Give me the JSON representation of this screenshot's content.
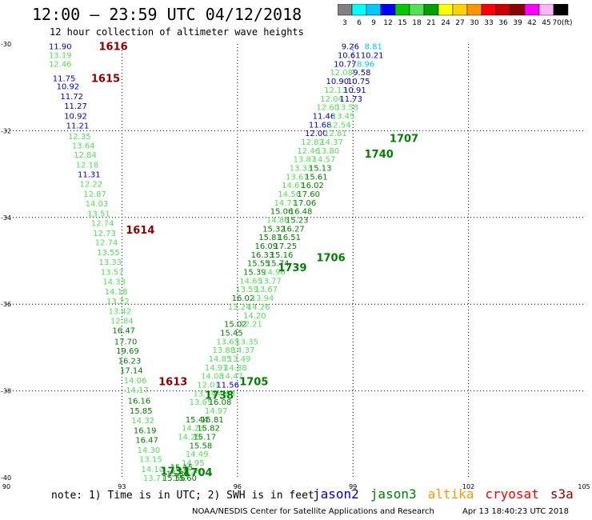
{
  "header": {
    "title": "12:00 – 23:59 UTC 04/12/2018",
    "subtitle": "12 hour collection of altimeter wave heights"
  },
  "colorbar": {
    "unit": "(ft)",
    "labels": [
      "3",
      "6",
      "9",
      "12",
      "15",
      "18",
      "21",
      "24",
      "27",
      "30",
      "33",
      "36",
      "39",
      "42",
      "45",
      "70"
    ],
    "colors": [
      "#808080",
      "#00ffff",
      "#00c8ff",
      "#0000ff",
      "#00c800",
      "#55e05a",
      "#00a000",
      "#ffff00",
      "#ffd200",
      "#ff9600",
      "#ff0000",
      "#c80000",
      "#8b0000",
      "#ff00ff",
      "#ffb4ff",
      "#000000"
    ]
  },
  "axes": {
    "x_ticks": [
      "90",
      "93",
      "96",
      "99",
      "102",
      "105"
    ],
    "y_ticks": [
      "-30",
      "-32",
      "-34",
      "-36",
      "-38",
      "-40"
    ]
  },
  "footer": {
    "note": "note: 1) Time is in UTC; 2) SWH is in feet",
    "satellites": [
      {
        "name": "jason2",
        "color": "#0000cc"
      },
      {
        "name": "jason3",
        "color": "#008000"
      },
      {
        "name": "altika",
        "color": "#ff9900"
      },
      {
        "name": "cryosat",
        "color": "#ff0000"
      },
      {
        "name": "s3a",
        "color": "#8b0000"
      }
    ],
    "credit": "NOAA/NESDIS Center for Satellite Applications and Research",
    "timestamp": "Apr 13 18:40:23 UTC 2018"
  },
  "chart_data": {
    "type": "scatter",
    "xlim": [
      90,
      105
    ],
    "ylim": [
      -40,
      -30
    ],
    "track_labels": [
      {
        "text": "1616",
        "lon": 92.4,
        "lat": -30.05,
        "color": "#8b0000"
      },
      {
        "text": "1615",
        "lon": 92.2,
        "lat": -30.78,
        "color": "#8b0000"
      },
      {
        "text": "1614",
        "lon": 93.1,
        "lat": -34.28,
        "color": "#8b0000"
      },
      {
        "text": "1613",
        "lon": 93.95,
        "lat": -37.78,
        "color": "#8b0000"
      },
      {
        "text": "1707",
        "lon": 99.95,
        "lat": -32.17,
        "color": "#008000"
      },
      {
        "text": "1740",
        "lon": 99.3,
        "lat": -32.53,
        "color": "#008000"
      },
      {
        "text": "1706",
        "lon": 98.05,
        "lat": -34.92,
        "color": "#008000"
      },
      {
        "text": "1739",
        "lon": 97.05,
        "lat": -35.15,
        "color": "#008000"
      },
      {
        "text": "1705",
        "lon": 96.05,
        "lat": -37.78,
        "color": "#008000"
      },
      {
        "text": "1738",
        "lon": 95.15,
        "lat": -38.09,
        "color": "#008000"
      },
      {
        "text": "1704",
        "lon": 94.6,
        "lat": -39.87,
        "color": "#008000"
      },
      {
        "text": "1737",
        "lon": 94.0,
        "lat": -39.84,
        "color": "#008000"
      }
    ],
    "points": [
      {
        "v": "11.90",
        "lon": 91.1,
        "lat": -30.05,
        "c": "#0000cc"
      },
      {
        "v": "13.19",
        "lon": 91.1,
        "lat": -30.25,
        "c": "#55e05a"
      },
      {
        "v": "12.46",
        "lon": 91.1,
        "lat": -30.45,
        "c": "#55e05a"
      },
      {
        "v": "11.75",
        "lon": 91.2,
        "lat": -30.78,
        "c": "#0000cc"
      },
      {
        "v": "10.92",
        "lon": 91.3,
        "lat": -30.97,
        "c": "#0000cc"
      },
      {
        "v": "11.72",
        "lon": 91.4,
        "lat": -31.2,
        "c": "#0000cc"
      },
      {
        "v": "11.27",
        "lon": 91.5,
        "lat": -31.42,
        "c": "#0000cc"
      },
      {
        "v": "10.92",
        "lon": 91.5,
        "lat": -31.65,
        "c": "#0000cc"
      },
      {
        "v": "11.21",
        "lon": 91.55,
        "lat": -31.87,
        "c": "#0000cc"
      },
      {
        "v": "12.35",
        "lon": 91.6,
        "lat": -32.12,
        "c": "#55e05a"
      },
      {
        "v": "13.64",
        "lon": 91.7,
        "lat": -32.33,
        "c": "#55e05a"
      },
      {
        "v": "12.84",
        "lon": 91.75,
        "lat": -32.55,
        "c": "#55e05a"
      },
      {
        "v": "12.18",
        "lon": 91.8,
        "lat": -32.78,
        "c": "#55e05a"
      },
      {
        "v": "11.31",
        "lon": 91.85,
        "lat": -33.0,
        "c": "#0000cc"
      },
      {
        "v": "12.22",
        "lon": 91.9,
        "lat": -33.22,
        "c": "#55e05a"
      },
      {
        "v": "12.87",
        "lon": 92.0,
        "lat": -33.45,
        "c": "#55e05a"
      },
      {
        "v": "14.03",
        "lon": 92.05,
        "lat": -33.67,
        "c": "#55e05a"
      },
      {
        "v": "13.51",
        "lon": 92.1,
        "lat": -33.9,
        "c": "#55e05a"
      },
      {
        "v": "12.74",
        "lon": 92.2,
        "lat": -34.12,
        "c": "#55e05a"
      },
      {
        "v": "12.73",
        "lon": 92.25,
        "lat": -34.35,
        "c": "#55e05a"
      },
      {
        "v": "12.74",
        "lon": 92.3,
        "lat": -34.57,
        "c": "#55e05a"
      },
      {
        "v": "13.55",
        "lon": 92.35,
        "lat": -34.8,
        "c": "#55e05a"
      },
      {
        "v": "13.33",
        "lon": 92.4,
        "lat": -35.02,
        "c": "#55e05a"
      },
      {
        "v": "13.57",
        "lon": 92.45,
        "lat": -35.25,
        "c": "#55e05a"
      },
      {
        "v": "14.33",
        "lon": 92.5,
        "lat": -35.47,
        "c": "#55e05a"
      },
      {
        "v": "14.18",
        "lon": 92.55,
        "lat": -35.7,
        "c": "#55e05a"
      },
      {
        "v": "13.22",
        "lon": 92.6,
        "lat": -35.92,
        "c": "#55e05a"
      },
      {
        "v": "13.42",
        "lon": 92.65,
        "lat": -36.15,
        "c": "#55e05a"
      },
      {
        "v": "12.84",
        "lon": 92.7,
        "lat": -36.37,
        "c": "#55e05a"
      },
      {
        "v": "16.47",
        "lon": 92.75,
        "lat": -36.6,
        "c": "#008000"
      },
      {
        "v": "17.70",
        "lon": 92.8,
        "lat": -36.85,
        "c": "#008000"
      },
      {
        "v": "19.69",
        "lon": 92.85,
        "lat": -37.07,
        "c": "#008000"
      },
      {
        "v": "16.23",
        "lon": 92.9,
        "lat": -37.3,
        "c": "#008000"
      },
      {
        "v": "17.14",
        "lon": 92.95,
        "lat": -37.52,
        "c": "#008000"
      },
      {
        "v": "14.06",
        "lon": 93.05,
        "lat": -37.75,
        "c": "#55e05a"
      },
      {
        "v": "14.17",
        "lon": 93.1,
        "lat": -37.97,
        "c": "#55e05a"
      },
      {
        "v": "16.16",
        "lon": 93.15,
        "lat": -38.22,
        "c": "#008000"
      },
      {
        "v": "15.85",
        "lon": 93.2,
        "lat": -38.45,
        "c": "#008000"
      },
      {
        "v": "14.32",
        "lon": 93.25,
        "lat": -38.67,
        "c": "#55e05a"
      },
      {
        "v": "16.19",
        "lon": 93.3,
        "lat": -38.9,
        "c": "#008000"
      },
      {
        "v": "16.47",
        "lon": 93.35,
        "lat": -39.12,
        "c": "#008000"
      },
      {
        "v": "14.30",
        "lon": 93.4,
        "lat": -39.35,
        "c": "#55e05a"
      },
      {
        "v": "13.15",
        "lon": 93.45,
        "lat": -39.57,
        "c": "#55e05a"
      },
      {
        "v": "14.10",
        "lon": 93.5,
        "lat": -39.8,
        "c": "#55e05a"
      },
      {
        "v": "13.71",
        "lon": 93.55,
        "lat": -40.0,
        "c": "#55e05a"
      },
      {
        "v": "9.26",
        "lon": 98.7,
        "lat": -30.05,
        "c": "#0000cc"
      },
      {
        "v": "8.81",
        "lon": 99.3,
        "lat": -30.05,
        "c": "#00c8ff"
      },
      {
        "v": "10.61",
        "lon": 98.6,
        "lat": -30.25,
        "c": "#0000cc"
      },
      {
        "v": "10.21",
        "lon": 99.2,
        "lat": -30.25,
        "c": "#0000cc"
      },
      {
        "v": "10.77",
        "lon": 98.5,
        "lat": -30.45,
        "c": "#0000cc"
      },
      {
        "v": "8.96",
        "lon": 99.1,
        "lat": -30.45,
        "c": "#00c8ff"
      },
      {
        "v": "12.08",
        "lon": 98.4,
        "lat": -30.65,
        "c": "#55e05a"
      },
      {
        "v": "9.58",
        "lon": 99.0,
        "lat": -30.65,
        "c": "#0000cc"
      },
      {
        "v": "10.90",
        "lon": 98.3,
        "lat": -30.85,
        "c": "#0000cc"
      },
      {
        "v": "10.75",
        "lon": 98.85,
        "lat": -30.85,
        "c": "#0000cc"
      },
      {
        "v": "12.13",
        "lon": 98.25,
        "lat": -31.05,
        "c": "#55e05a"
      },
      {
        "v": "10.91",
        "lon": 98.75,
        "lat": -31.05,
        "c": "#0000cc"
      },
      {
        "v": "12.04",
        "lon": 98.15,
        "lat": -31.25,
        "c": "#55e05a"
      },
      {
        "v": "11.73",
        "lon": 98.65,
        "lat": -31.25,
        "c": "#0000cc"
      },
      {
        "v": "12.60",
        "lon": 98.05,
        "lat": -31.45,
        "c": "#55e05a"
      },
      {
        "v": "13.58",
        "lon": 98.55,
        "lat": -31.45,
        "c": "#55e05a"
      },
      {
        "v": "11.46",
        "lon": 97.95,
        "lat": -31.65,
        "c": "#0000cc"
      },
      {
        "v": "13.45",
        "lon": 98.45,
        "lat": -31.65,
        "c": "#55e05a"
      },
      {
        "v": "11.68",
        "lon": 97.85,
        "lat": -31.85,
        "c": "#0000cc"
      },
      {
        "v": "12.54",
        "lon": 98.35,
        "lat": -31.85,
        "c": "#55e05a"
      },
      {
        "v": "12.00",
        "lon": 97.75,
        "lat": -32.05,
        "c": "#0000cc"
      },
      {
        "v": "12.81",
        "lon": 98.25,
        "lat": -32.05,
        "c": "#55e05a"
      },
      {
        "v": "12.82",
        "lon": 97.65,
        "lat": -32.25,
        "c": "#55e05a"
      },
      {
        "v": "14.37",
        "lon": 98.15,
        "lat": -32.25,
        "c": "#55e05a"
      },
      {
        "v": "12.46",
        "lon": 97.55,
        "lat": -32.45,
        "c": "#55e05a"
      },
      {
        "v": "13.80",
        "lon": 98.05,
        "lat": -32.45,
        "c": "#55e05a"
      },
      {
        "v": "13.87",
        "lon": 97.45,
        "lat": -32.65,
        "c": "#55e05a"
      },
      {
        "v": "14.57",
        "lon": 97.95,
        "lat": -32.65,
        "c": "#55e05a"
      },
      {
        "v": "13.33",
        "lon": 97.35,
        "lat": -32.85,
        "c": "#55e05a"
      },
      {
        "v": "15.13",
        "lon": 97.85,
        "lat": -32.85,
        "c": "#008000"
      },
      {
        "v": "13.67",
        "lon": 97.25,
        "lat": -33.05,
        "c": "#55e05a"
      },
      {
        "v": "15.61",
        "lon": 97.75,
        "lat": -33.05,
        "c": "#008000"
      },
      {
        "v": "14.61",
        "lon": 97.15,
        "lat": -33.25,
        "c": "#55e05a"
      },
      {
        "v": "16.02",
        "lon": 97.65,
        "lat": -33.25,
        "c": "#008000"
      },
      {
        "v": "14.56",
        "lon": 97.05,
        "lat": -33.45,
        "c": "#55e05a"
      },
      {
        "v": "17.60",
        "lon": 97.55,
        "lat": -33.45,
        "c": "#008000"
      },
      {
        "v": "14.71",
        "lon": 96.95,
        "lat": -33.65,
        "c": "#55e05a"
      },
      {
        "v": "17.06",
        "lon": 97.45,
        "lat": -33.65,
        "c": "#008000"
      },
      {
        "v": "15.06",
        "lon": 96.85,
        "lat": -33.85,
        "c": "#008000"
      },
      {
        "v": "16.48",
        "lon": 97.35,
        "lat": -33.85,
        "c": "#008000"
      },
      {
        "v": "14.86",
        "lon": 96.75,
        "lat": -34.05,
        "c": "#55e05a"
      },
      {
        "v": "15.23",
        "lon": 97.25,
        "lat": -34.05,
        "c": "#008000"
      },
      {
        "v": "15.32",
        "lon": 96.65,
        "lat": -34.25,
        "c": "#008000"
      },
      {
        "v": "16.27",
        "lon": 97.15,
        "lat": -34.25,
        "c": "#008000"
      },
      {
        "v": "15.81",
        "lon": 96.55,
        "lat": -34.45,
        "c": "#008000"
      },
      {
        "v": "16.51",
        "lon": 97.05,
        "lat": -34.45,
        "c": "#008000"
      },
      {
        "v": "16.09",
        "lon": 96.45,
        "lat": -34.65,
        "c": "#008000"
      },
      {
        "v": "17.25",
        "lon": 96.95,
        "lat": -34.65,
        "c": "#008000"
      },
      {
        "v": "16.33",
        "lon": 96.35,
        "lat": -34.85,
        "c": "#008000"
      },
      {
        "v": "15.16",
        "lon": 96.85,
        "lat": -34.85,
        "c": "#008000"
      },
      {
        "v": "15.55",
        "lon": 96.25,
        "lat": -35.05,
        "c": "#008000"
      },
      {
        "v": "15.74",
        "lon": 96.75,
        "lat": -35.05,
        "c": "#008000"
      },
      {
        "v": "15.39",
        "lon": 96.15,
        "lat": -35.25,
        "c": "#008000"
      },
      {
        "v": "14.96",
        "lon": 96.65,
        "lat": -35.25,
        "c": "#55e05a"
      },
      {
        "v": "14.65",
        "lon": 96.05,
        "lat": -35.45,
        "c": "#55e05a"
      },
      {
        "v": "13.77",
        "lon": 96.55,
        "lat": -35.45,
        "c": "#55e05a"
      },
      {
        "v": "13.59",
        "lon": 95.95,
        "lat": -35.65,
        "c": "#55e05a"
      },
      {
        "v": "13.67",
        "lon": 96.45,
        "lat": -35.65,
        "c": "#55e05a"
      },
      {
        "v": "16.02",
        "lon": 95.85,
        "lat": -35.85,
        "c": "#008000"
      },
      {
        "v": "13.94",
        "lon": 96.35,
        "lat": -35.85,
        "c": "#55e05a"
      },
      {
        "v": "13.24",
        "lon": 95.75,
        "lat": -36.05,
        "c": "#55e05a"
      },
      {
        "v": "14.26",
        "lon": 96.25,
        "lat": -36.05,
        "c": "#55e05a"
      },
      {
        "v": "14.20",
        "lon": 96.15,
        "lat": -36.25,
        "c": "#55e05a"
      },
      {
        "v": "15.02",
        "lon": 95.65,
        "lat": -36.45,
        "c": "#008000"
      },
      {
        "v": "12.21",
        "lon": 96.05,
        "lat": -36.45,
        "c": "#55e05a"
      },
      {
        "v": "15.45",
        "lon": 95.55,
        "lat": -36.65,
        "c": "#008000"
      },
      {
        "v": "13.65",
        "lon": 95.45,
        "lat": -36.85,
        "c": "#55e05a"
      },
      {
        "v": "13.35",
        "lon": 95.95,
        "lat": -36.85,
        "c": "#55e05a"
      },
      {
        "v": "13.88",
        "lon": 95.35,
        "lat": -37.05,
        "c": "#55e05a"
      },
      {
        "v": "14.37",
        "lon": 95.85,
        "lat": -37.05,
        "c": "#55e05a"
      },
      {
        "v": "14.85",
        "lon": 95.25,
        "lat": -37.25,
        "c": "#55e05a"
      },
      {
        "v": "13.49",
        "lon": 95.75,
        "lat": -37.25,
        "c": "#55e05a"
      },
      {
        "v": "14.91",
        "lon": 95.15,
        "lat": -37.45,
        "c": "#55e05a"
      },
      {
        "v": "14.88",
        "lon": 95.65,
        "lat": -37.45,
        "c": "#55e05a"
      },
      {
        "v": "14.08",
        "lon": 95.05,
        "lat": -37.65,
        "c": "#55e05a"
      },
      {
        "v": "14.47",
        "lon": 95.55,
        "lat": -37.65,
        "c": "#55e05a"
      },
      {
        "v": "12.01",
        "lon": 94.95,
        "lat": -37.85,
        "c": "#55e05a"
      },
      {
        "v": "11.56",
        "lon": 95.45,
        "lat": -37.85,
        "c": "#0000cc"
      },
      {
        "v": "13.74",
        "lon": 94.85,
        "lat": -38.05,
        "c": "#55e05a"
      },
      {
        "v": "14.03",
        "lon": 95.35,
        "lat": -38.05,
        "c": "#55e05a"
      },
      {
        "v": "13.65",
        "lon": 94.75,
        "lat": -38.25,
        "c": "#55e05a"
      },
      {
        "v": "16.08",
        "lon": 95.25,
        "lat": -38.25,
        "c": "#008000"
      },
      {
        "v": "14.97",
        "lon": 95.15,
        "lat": -38.45,
        "c": "#55e05a"
      },
      {
        "v": "15.44",
        "lon": 94.65,
        "lat": -38.65,
        "c": "#008000"
      },
      {
        "v": "15.81",
        "lon": 95.05,
        "lat": -38.65,
        "c": "#008000"
      },
      {
        "v": "14.23",
        "lon": 94.55,
        "lat": -38.85,
        "c": "#55e05a"
      },
      {
        "v": "15.82",
        "lon": 94.95,
        "lat": -38.85,
        "c": "#008000"
      },
      {
        "v": "14.25",
        "lon": 94.45,
        "lat": -39.05,
        "c": "#55e05a"
      },
      {
        "v": "15.17",
        "lon": 94.85,
        "lat": -39.05,
        "c": "#008000"
      },
      {
        "v": "15.58",
        "lon": 94.75,
        "lat": -39.25,
        "c": "#008000"
      },
      {
        "v": "14.49",
        "lon": 94.65,
        "lat": -39.45,
        "c": "#55e05a"
      },
      {
        "v": "14.95",
        "lon": 94.55,
        "lat": -39.65,
        "c": "#55e05a"
      },
      {
        "v": "14.24",
        "lon": 94.45,
        "lat": -39.85,
        "c": "#55e05a"
      },
      {
        "v": "15.60",
        "lon": 94.35,
        "lat": -40.0,
        "c": "#008000"
      },
      {
        "v": "15.15",
        "lon": 94.25,
        "lat": -39.75,
        "c": "#008000"
      },
      {
        "v": "15.30",
        "lon": 94.15,
        "lat": -39.9,
        "c": "#008000"
      },
      {
        "v": "15.56",
        "lon": 94.05,
        "lat": -40.0,
        "c": "#008000"
      }
    ]
  }
}
